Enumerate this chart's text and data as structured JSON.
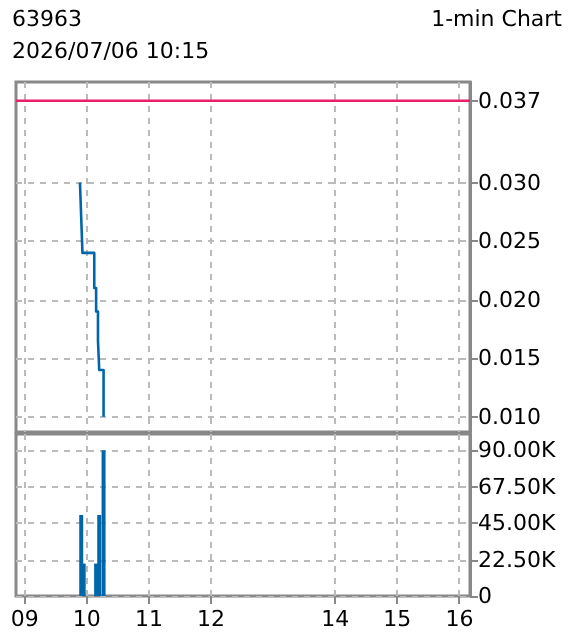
{
  "chart_data": [
    {
      "type": "step",
      "title": "63963",
      "subtitle": "2026/07/06 10:15",
      "annotations": [
        "1-min Chart"
      ],
      "x": [
        9.89,
        9.91,
        9.93,
        10.12,
        10.15,
        10.18,
        10.2,
        10.27
      ],
      "series": [
        {
          "color": "#0066aa",
          "values": [
            0.03,
            0.027,
            0.024,
            0.021,
            0.019,
            0.0165,
            0.014,
            0.01
          ]
        }
      ],
      "xlim": [
        8.86,
        16.17
      ],
      "xticks": [
        9,
        10,
        11,
        12,
        14,
        15,
        16
      ],
      "ylim": [
        0.0087,
        0.0386
      ],
      "yticks": [
        {
          "value": 0.01,
          "label": "0.010"
        },
        0.015,
        {
          "value": 0.02,
          "label": "0.020"
        },
        0.025,
        {
          "value": 0.03,
          "label": "0.030"
        },
        0.037
      ],
      "ref_lines": [
        {
          "axis": "y",
          "value": 0.037,
          "color": "#e8206a"
        }
      ],
      "grid": true,
      "line_style": "solid",
      "marker": "none",
      "tick_labels": "y"
    },
    {
      "type": "bar",
      "x": [
        9.91,
        9.95,
        10.15,
        10.2,
        10.27
      ],
      "series": [
        {
          "color": "#0066aa",
          "values": [
            50000,
            20000,
            20000,
            50000,
            90000
          ]
        }
      ],
      "xlim": [
        8.86,
        16.17
      ],
      "xticks": [
        {
          "value": 9,
          "label": "09"
        },
        10,
        11,
        12,
        14,
        15,
        16
      ],
      "ylim": [
        0,
        100000
      ],
      "yticks": [
        0,
        {
          "value": 22500,
          "label": "22.50K"
        },
        {
          "value": 45000,
          "label": "45.00K"
        },
        {
          "value": 67500,
          "label": "67.50K"
        },
        {
          "value": 90000,
          "label": "90.00K"
        }
      ],
      "grid": true
    }
  ]
}
